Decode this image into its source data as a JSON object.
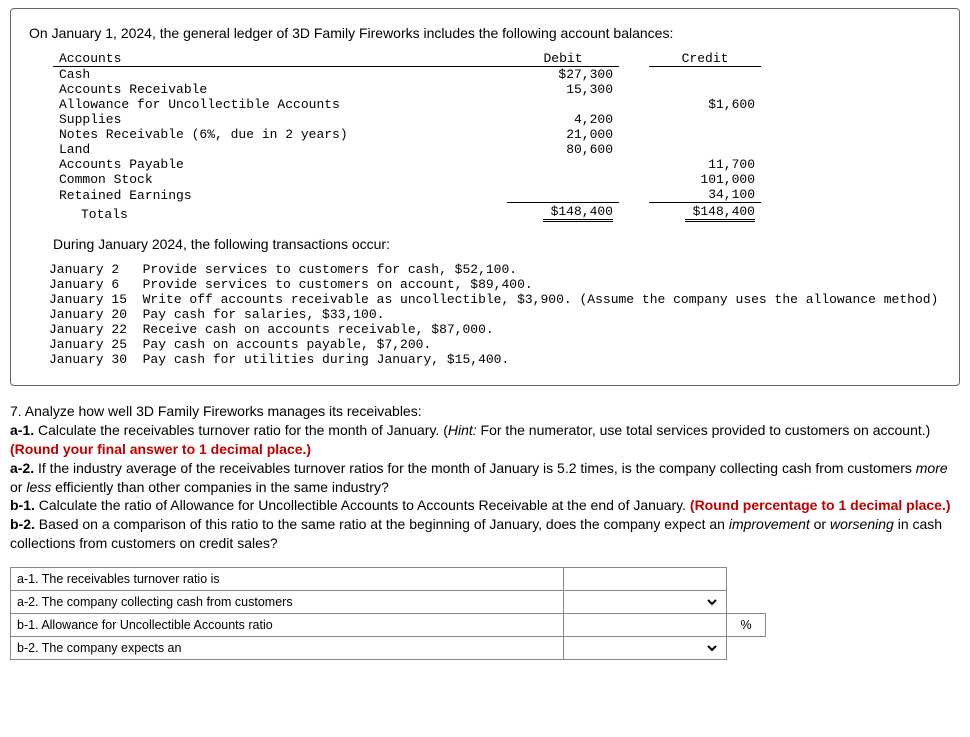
{
  "intro": "On January 1, 2024, the general ledger of 3D Family Fireworks includes the following account balances:",
  "ledger": {
    "headers": {
      "acct": "Accounts",
      "debit": "Debit",
      "credit": "Credit"
    },
    "rows": [
      {
        "acct": "Cash",
        "debit": "$27,300",
        "credit": ""
      },
      {
        "acct": "Accounts Receivable",
        "debit": "15,300",
        "credit": ""
      },
      {
        "acct": "Allowance for Uncollectible Accounts",
        "debit": "",
        "credit": "$1,600"
      },
      {
        "acct": "Supplies",
        "debit": "4,200",
        "credit": ""
      },
      {
        "acct": "Notes Receivable (6%, due in 2 years)",
        "debit": "21,000",
        "credit": ""
      },
      {
        "acct": "Land",
        "debit": "80,600",
        "credit": ""
      },
      {
        "acct": "Accounts Payable",
        "debit": "",
        "credit": "11,700"
      },
      {
        "acct": "Common Stock",
        "debit": "",
        "credit": "101,000"
      },
      {
        "acct": "Retained Earnings",
        "debit": "",
        "credit": "34,100"
      }
    ],
    "totals": {
      "label": "Totals",
      "debit": "$148,400",
      "credit": "$148,400"
    }
  },
  "during": "During January 2024, the following transactions occur:",
  "transactions": [
    "January 2   Provide services to customers for cash, $52,100.",
    "January 6   Provide services to customers on account, $89,400.",
    "January 15  Write off accounts receivable as uncollectible, $3,900. (Assume the company uses the allowance method)",
    "January 20  Pay cash for salaries, $33,100.",
    "January 22  Receive cash on accounts receivable, $87,000.",
    "January 25  Pay cash on accounts payable, $7,200.",
    "January 30  Pay cash for utilities during January, $15,400."
  ],
  "questions": {
    "q7": "7. Analyze how well 3D Family Fireworks manages its receivables:",
    "a1a": "a-1.",
    "a1b": " Calculate the receivables turnover ratio for the month of January. (",
    "a1hint": "Hint:",
    "a1c": " For the numerator, use total services provided to customers on account.) ",
    "a1red": "(Round your final answer to 1 decimal place.)",
    "a2a": "a-2.",
    "a2b": " If the industry average of the receivables turnover ratios for the month of January is 5.2 times, is the company collecting cash from customers ",
    "a2more": "more",
    "a2or": " or ",
    "a2less": "less",
    "a2c": " efficiently than other companies in the same industry?",
    "b1a": "b-1.",
    "b1b": " Calculate the ratio of Allowance for Uncollectible Accounts to Accounts Receivable at the end of January. ",
    "b1red": "(Round percentage to 1 decimal place.)",
    "b2a": "b-2.",
    "b2b": " Based on a comparison of this ratio to the same ratio at the beginning of January, does the company expect an ",
    "b2imp": "improvement",
    "b2or": " or ",
    "b2wor": "worsening",
    "b2c": " in cash collections from customers on credit sales?"
  },
  "answers": {
    "a1": "a-1. The receivables turnover ratio is",
    "a2": "a-2. The company collecting cash from customers",
    "b1": "b-1. Allowance for Uncollectible Accounts ratio",
    "b2": "b-2. The company expects an",
    "pct": "%"
  }
}
